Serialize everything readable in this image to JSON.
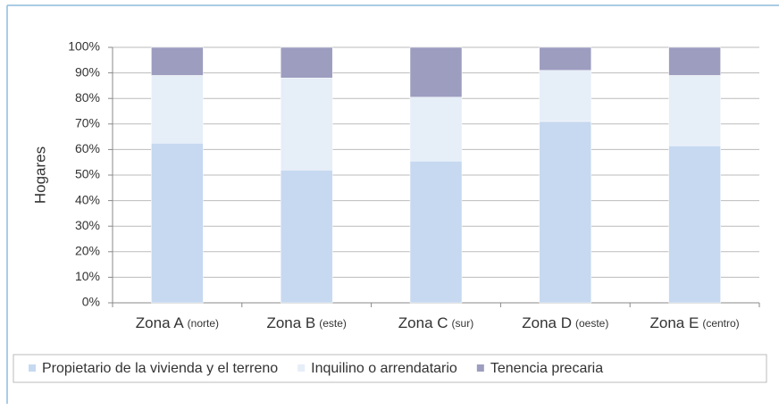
{
  "chart_data": {
    "type": "stacked_bar",
    "y_label": "Hogares",
    "categories": [
      "Zona A",
      "Zona B",
      "Zona C",
      "Zona D",
      "Zona E"
    ],
    "category_notes": [
      "(norte)",
      "(este)",
      "(sur)",
      "(oeste)",
      "(centro)"
    ],
    "series": [
      {
        "name": "Propietario de la vivienda y el terreno",
        "color": "#c6d9f0",
        "values": [
          62.5,
          52,
          55.5,
          71,
          61.5
        ]
      },
      {
        "name": "Inquilino o arrendatario",
        "color": "#e6eef8",
        "values": [
          26.5,
          36,
          25,
          20,
          27.5
        ]
      },
      {
        "name": "Tenencia precaria",
        "color": "#9c9dbf",
        "values": [
          11,
          12,
          19.5,
          9,
          11
        ]
      }
    ],
    "ylim": [
      0,
      100
    ],
    "yticks": [
      {
        "value": 0,
        "label": "0%"
      },
      {
        "value": 10,
        "label": "10%"
      },
      {
        "value": 20,
        "label": "20%"
      },
      {
        "value": 30,
        "label": "30%"
      },
      {
        "value": 40,
        "label": "40%"
      },
      {
        "value": 50,
        "label": "50%"
      },
      {
        "value": 60,
        "label": "60%"
      },
      {
        "value": 70,
        "label": "70%"
      },
      {
        "value": 80,
        "label": "80%"
      },
      {
        "value": 90,
        "label": "90%"
      },
      {
        "value": 100,
        "label": "100%"
      }
    ],
    "grid": true
  }
}
